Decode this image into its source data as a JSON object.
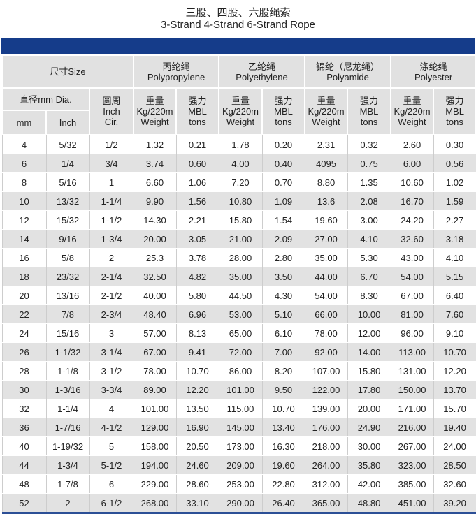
{
  "title_cn": "三股、四股、六股绳索",
  "title_en": "3-Strand 4-Strand 6-Strand Rope",
  "header": {
    "size": "尺寸Size",
    "dia": "直径mm Dia.",
    "mm": "mm",
    "inch": "Inch",
    "cir": [
      "圆周",
      "Inch",
      "Cir."
    ],
    "materials": [
      {
        "cn": "丙纶绳",
        "en": "Polypropylene"
      },
      {
        "cn": "乙纶绳",
        "en": "Polyethylene"
      },
      {
        "cn": "锦纶（尼龙绳）",
        "en": "Polyamide"
      },
      {
        "cn": "涤纶绳",
        "en": "Polyester"
      }
    ],
    "weight": [
      "重量",
      "Kg/220m",
      "Weight"
    ],
    "mbl": [
      "强力",
      "MBL",
      "tons"
    ]
  },
  "rows": [
    [
      "4",
      "5/32",
      "1/2",
      "1.32",
      "0.21",
      "1.78",
      "0.20",
      "2.31",
      "0.32",
      "2.60",
      "0.30"
    ],
    [
      "6",
      "1/4",
      "3/4",
      "3.74",
      "0.60",
      "4.00",
      "0.40",
      "4095",
      "0.75",
      "6.00",
      "0.56"
    ],
    [
      "8",
      "5/16",
      "1",
      "6.60",
      "1.06",
      "7.20",
      "0.70",
      "8.80",
      "1.35",
      "10.60",
      "1.02"
    ],
    [
      "10",
      "13/32",
      "1-1/4",
      "9.90",
      "1.56",
      "10.80",
      "1.09",
      "13.6",
      "2.08",
      "16.70",
      "1.59"
    ],
    [
      "12",
      "15/32",
      "1-1/2",
      "14.30",
      "2.21",
      "15.80",
      "1.54",
      "19.60",
      "3.00",
      "24.20",
      "2.27"
    ],
    [
      "14",
      "9/16",
      "1-3/4",
      "20.00",
      "3.05",
      "21.00",
      "2.09",
      "27.00",
      "4.10",
      "32.60",
      "3.18"
    ],
    [
      "16",
      "5/8",
      "2",
      "25.3",
      "3.78",
      "28.00",
      "2.80",
      "35.00",
      "5.30",
      "43.00",
      "4.10"
    ],
    [
      "18",
      "23/32",
      "2-1/4",
      "32.50",
      "4.82",
      "35.00",
      "3.50",
      "44.00",
      "6.70",
      "54.00",
      "5.15"
    ],
    [
      "20",
      "13/16",
      "2-1/2",
      "40.00",
      "5.80",
      "44.50",
      "4.30",
      "54.00",
      "8.30",
      "67.00",
      "6.40"
    ],
    [
      "22",
      "7/8",
      "2-3/4",
      "48.40",
      "6.96",
      "53.00",
      "5.10",
      "66.00",
      "10.00",
      "81.00",
      "7.60"
    ],
    [
      "24",
      "15/16",
      "3",
      "57.00",
      "8.13",
      "65.00",
      "6.10",
      "78.00",
      "12.00",
      "96.00",
      "9.10"
    ],
    [
      "26",
      "1-1/32",
      "3-1/4",
      "67.00",
      "9.41",
      "72.00",
      "7.00",
      "92.00",
      "14.00",
      "113.00",
      "10.70"
    ],
    [
      "28",
      "1-1/8",
      "3-1/2",
      "78.00",
      "10.70",
      "86.00",
      "8.20",
      "107.00",
      "15.80",
      "131.00",
      "12.20"
    ],
    [
      "30",
      "1-3/16",
      "3-3/4",
      "89.00",
      "12.20",
      "101.00",
      "9.50",
      "122.00",
      "17.80",
      "150.00",
      "13.70"
    ],
    [
      "32",
      "1-1/4",
      "4",
      "101.00",
      "13.50",
      "115.00",
      "10.70",
      "139.00",
      "20.00",
      "171.00",
      "15.70"
    ],
    [
      "36",
      "1-7/16",
      "4-1/2",
      "129.00",
      "16.90",
      "145.00",
      "13.40",
      "176.00",
      "24.90",
      "216.00",
      "19.40"
    ],
    [
      "40",
      "1-19/32",
      "5",
      "158.00",
      "20.50",
      "173.00",
      "16.30",
      "218.00",
      "30.00",
      "267.00",
      "24.00"
    ],
    [
      "44",
      "1-3/4",
      "5-1/2",
      "194.00",
      "24.60",
      "209.00",
      "19.60",
      "264.00",
      "35.80",
      "323.00",
      "28.50"
    ],
    [
      "48",
      "1-7/8",
      "6",
      "229.00",
      "28.60",
      "253.00",
      "22.80",
      "312.00",
      "42.00",
      "385.00",
      "32.60"
    ],
    [
      "52",
      "2",
      "6-1/2",
      "268.00",
      "33.10",
      "290.00",
      "26.40",
      "365.00",
      "48.80",
      "451.00",
      "39.20"
    ]
  ],
  "colors": {
    "band": "#153c8a",
    "header_bg": "#e1e1e1",
    "stripe": "#e2e2e2"
  }
}
